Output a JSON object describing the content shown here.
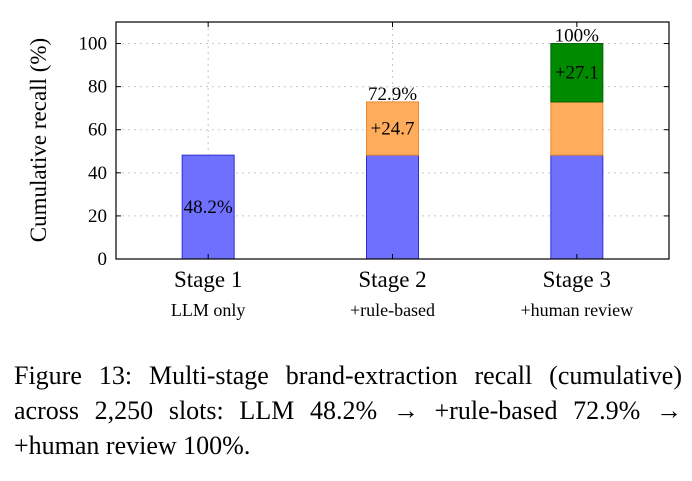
{
  "chart_data": {
    "type": "bar",
    "stacked": true,
    "ylabel": "Cumulative recall (%)",
    "ylim": [
      0,
      110
    ],
    "yticks": [
      0,
      20,
      40,
      60,
      80,
      100
    ],
    "grid": true,
    "categories": [
      "Stage 1",
      "Stage 2",
      "Stage 3"
    ],
    "category_sublabels": [
      "LLM only",
      "+rule-based",
      "+human review"
    ],
    "series": [
      {
        "values": [
          48.2,
          48.2,
          48.2
        ],
        "color": "#7070ff"
      },
      {
        "values": [
          0,
          24.7,
          24.7
        ],
        "color": "#ffad5c"
      },
      {
        "values": [
          0,
          0,
          27.1
        ],
        "color": "#008a00"
      }
    ],
    "segment_labels": [
      {
        "category": 0,
        "text": "48.2%"
      },
      {
        "category": 1,
        "text": "+24.7"
      },
      {
        "category": 2,
        "text": "+27.1"
      }
    ],
    "total_labels": [
      "",
      "72.9%",
      "100%"
    ]
  },
  "caption": "Figure 13: Multi-stage brand-extraction recall (cumulative) across 2,250 slots: LLM 48.2% → +rule-based 72.9% → +human review 100%."
}
